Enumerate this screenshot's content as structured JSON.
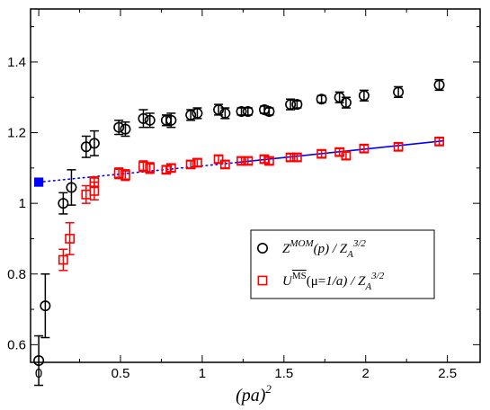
{
  "chart_data": {
    "type": "scatter",
    "xlabel": "(pa)",
    "xlabel_sup": "2",
    "xlim": [
      -0.05,
      2.7
    ],
    "ylim": [
      0.55,
      1.55
    ],
    "xticks": [
      0,
      0.5,
      1,
      1.5,
      2,
      2.5
    ],
    "xtick_labels": [
      "0",
      "0.5",
      "1",
      "1.5",
      "2",
      "2.5"
    ],
    "yticks": [
      0.6,
      0.8,
      1.0,
      1.2,
      1.4
    ],
    "ytick_labels": [
      "0.6",
      "0.8",
      "1",
      "1.2",
      "1.4"
    ],
    "grid": false,
    "legend_position": "lower-right",
    "series": [
      {
        "key": "zmom",
        "marker": "circle",
        "color": "#000000",
        "points": [
          {
            "x": 0.0,
            "y": 0.555,
            "err": 0.07
          },
          {
            "x": 0.04,
            "y": 0.71,
            "err": 0.09
          },
          {
            "x": 0.15,
            "y": 1.0,
            "err": 0.03
          },
          {
            "x": 0.2,
            "y": 1.045,
            "err": 0.05
          },
          {
            "x": 0.29,
            "y": 1.16,
            "err": 0.03
          },
          {
            "x": 0.34,
            "y": 1.17,
            "err": 0.035
          },
          {
            "x": 0.49,
            "y": 1.215,
            "err": 0.02
          },
          {
            "x": 0.53,
            "y": 1.21,
            "err": 0.02
          },
          {
            "x": 0.64,
            "y": 1.24,
            "err": 0.025
          },
          {
            "x": 0.68,
            "y": 1.235,
            "err": 0.02
          },
          {
            "x": 0.78,
            "y": 1.235,
            "err": 0.015
          },
          {
            "x": 0.81,
            "y": 1.235,
            "err": 0.02
          },
          {
            "x": 0.93,
            "y": 1.25,
            "err": 0.015
          },
          {
            "x": 0.97,
            "y": 1.255,
            "err": 0.015
          },
          {
            "x": 1.1,
            "y": 1.265,
            "err": 0.015
          },
          {
            "x": 1.14,
            "y": 1.255,
            "err": 0.015
          },
          {
            "x": 1.24,
            "y": 1.26,
            "err": 0.01
          },
          {
            "x": 1.28,
            "y": 1.26,
            "err": 0.01
          },
          {
            "x": 1.38,
            "y": 1.265,
            "err": 0.01
          },
          {
            "x": 1.41,
            "y": 1.26,
            "err": 0.01
          },
          {
            "x": 1.54,
            "y": 1.28,
            "err": 0.015
          },
          {
            "x": 1.58,
            "y": 1.28,
            "err": 0.01
          },
          {
            "x": 1.73,
            "y": 1.295,
            "err": 0.01
          },
          {
            "x": 1.84,
            "y": 1.3,
            "err": 0.015
          },
          {
            "x": 1.88,
            "y": 1.285,
            "err": 0.015
          },
          {
            "x": 1.99,
            "y": 1.305,
            "err": 0.015
          },
          {
            "x": 2.2,
            "y": 1.315,
            "err": 0.015
          },
          {
            "x": 2.45,
            "y": 1.335,
            "err": 0.015
          }
        ]
      },
      {
        "key": "ums",
        "marker": "square",
        "color": "#ff0000",
        "points": [
          {
            "x": 0.15,
            "y": 0.84,
            "err": 0.03
          },
          {
            "x": 0.19,
            "y": 0.9,
            "err": 0.045
          },
          {
            "x": 0.29,
            "y": 1.025,
            "err": 0.025
          },
          {
            "x": 0.34,
            "y": 1.035,
            "err": 0.025
          },
          {
            "x": 0.34,
            "y": 1.06,
            "err": 0.015
          },
          {
            "x": 0.49,
            "y": 1.085,
            "err": 0.015
          },
          {
            "x": 0.53,
            "y": 1.08,
            "err": 0.015
          },
          {
            "x": 0.64,
            "y": 1.105,
            "err": 0.015
          },
          {
            "x": 0.68,
            "y": 1.1,
            "err": 0.015
          },
          {
            "x": 0.78,
            "y": 1.095,
            "err": 0.01
          },
          {
            "x": 0.81,
            "y": 1.1,
            "err": 0.01
          },
          {
            "x": 0.93,
            "y": 1.11,
            "err": 0.01
          },
          {
            "x": 0.97,
            "y": 1.115,
            "err": 0.01
          },
          {
            "x": 1.1,
            "y": 1.125,
            "err": 0.01
          },
          {
            "x": 1.14,
            "y": 1.11,
            "err": 0.01
          },
          {
            "x": 1.24,
            "y": 1.12,
            "err": 0.01
          },
          {
            "x": 1.28,
            "y": 1.12,
            "err": 0.01
          },
          {
            "x": 1.38,
            "y": 1.125,
            "err": 0.01
          },
          {
            "x": 1.41,
            "y": 1.12,
            "err": 0.01
          },
          {
            "x": 1.54,
            "y": 1.13,
            "err": 0.01
          },
          {
            "x": 1.58,
            "y": 1.13,
            "err": 0.01
          },
          {
            "x": 1.73,
            "y": 1.14,
            "err": 0.01
          },
          {
            "x": 1.84,
            "y": 1.145,
            "err": 0.01
          },
          {
            "x": 1.88,
            "y": 1.135,
            "err": 0.01
          },
          {
            "x": 1.99,
            "y": 1.155,
            "err": 0.01
          },
          {
            "x": 2.2,
            "y": 1.16,
            "err": 0.01
          },
          {
            "x": 2.45,
            "y": 1.175,
            "err": 0.01
          }
        ]
      },
      {
        "key": "extrapolated",
        "marker": "filled-square",
        "color": "#0000ff",
        "points": [
          {
            "x": 0.0,
            "y": 1.06,
            "err": 0.01
          }
        ]
      }
    ],
    "fit_line": {
      "color": "#0000ff",
      "from": [
        1.2,
        1.115
      ],
      "to": [
        2.48,
        1.177
      ],
      "style": "solid"
    },
    "fit_extrapolation": {
      "color": "#0000ff",
      "from": [
        0.0,
        1.06
      ],
      "to": [
        1.2,
        1.115
      ],
      "style": "dotted"
    },
    "legend": [
      {
        "marker": "circle",
        "color": "#000000",
        "parts": [
          {
            "t": "Z",
            "style": "italic"
          },
          {
            "t": "MOM",
            "style": "italic",
            "shift": "sup"
          },
          {
            "t": "(p) / Z",
            "style": "italic"
          },
          {
            "t": "A",
            "style": "italic",
            "shift": "sub"
          },
          {
            "t": "3/2",
            "style": "italic",
            "shift": "sup"
          }
        ]
      },
      {
        "marker": "square",
        "color": "#ff0000",
        "parts": [
          {
            "t": "U",
            "style": "italic"
          },
          {
            "t": "MS",
            "style": "normal",
            "shift": "sup",
            "overline": true
          },
          {
            "t": "(μ=",
            "style": "normal"
          },
          {
            "t": "1/a",
            "style": "italic"
          },
          {
            "t": ") / Z",
            "style": "italic"
          },
          {
            "t": "A",
            "style": "italic",
            "shift": "sub"
          },
          {
            "t": "3/2",
            "style": "italic",
            "shift": "sup"
          }
        ]
      }
    ]
  }
}
